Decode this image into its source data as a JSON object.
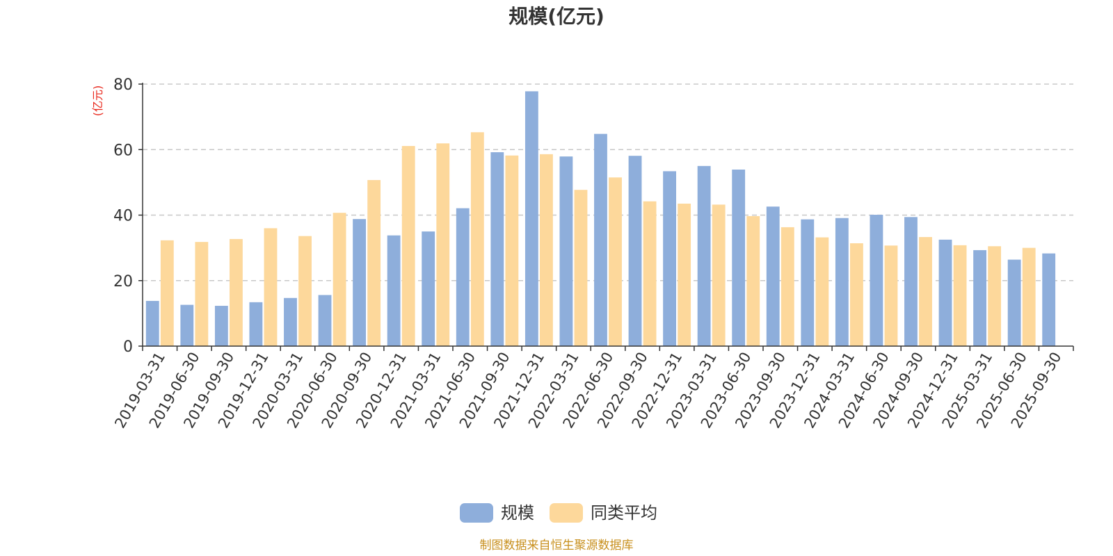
{
  "chart_data": {
    "type": "bar",
    "title": "规模(亿元)",
    "ylabel": "(亿元)",
    "ylim": [
      0,
      80
    ],
    "yticks": [
      0,
      20,
      40,
      60,
      80
    ],
    "grid": true,
    "legend_position": "bottom-center",
    "categories": [
      "2019-03-31",
      "2019-06-30",
      "2019-09-30",
      "2019-12-31",
      "2020-03-31",
      "2020-06-30",
      "2020-09-30",
      "2020-12-31",
      "2021-03-31",
      "2021-06-30",
      "2021-09-30",
      "2021-12-31",
      "2022-03-31",
      "2022-06-30",
      "2022-09-30",
      "2022-12-31",
      "2023-03-31",
      "2023-06-30",
      "2023-09-30",
      "2023-12-31",
      "2024-03-31",
      "2024-06-30",
      "2024-09-30",
      "2024-12-31",
      "2025-03-31",
      "2025-06-30",
      "2025-09-30"
    ],
    "series": [
      {
        "name": "规模",
        "color": "#8eaedb",
        "values": [
          13.8,
          12.6,
          12.3,
          13.4,
          14.7,
          15.6,
          38.8,
          33.8,
          35.0,
          42.1,
          59.2,
          77.8,
          57.9,
          64.8,
          58.1,
          53.4,
          55.0,
          53.9,
          42.6,
          38.7,
          39.1,
          40.1,
          39.4,
          32.5,
          29.3,
          26.4,
          28.3
        ]
      },
      {
        "name": "同类平均",
        "color": "#fdd89b",
        "values": [
          32.3,
          31.8,
          32.7,
          36.0,
          33.6,
          40.7,
          50.7,
          61.1,
          61.9,
          65.3,
          58.2,
          58.6,
          47.7,
          51.5,
          44.2,
          43.5,
          43.2,
          39.7,
          36.3,
          33.2,
          31.4,
          30.7,
          33.3,
          30.8,
          30.5,
          30.0,
          null
        ]
      }
    ]
  },
  "source": "制图数据来自恒生聚源数据库"
}
